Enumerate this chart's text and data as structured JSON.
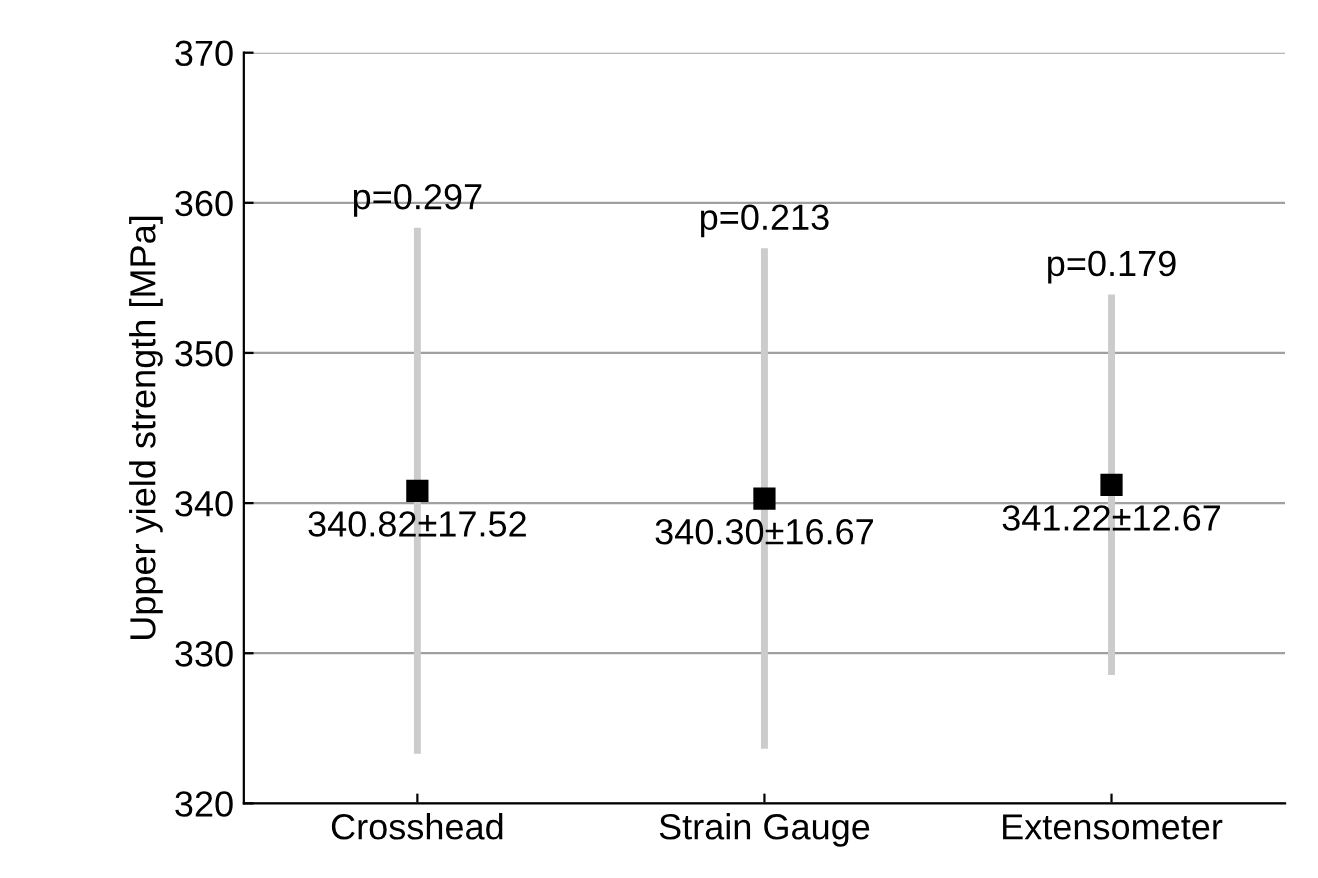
{
  "chart_data": {
    "type": "scatter",
    "ylabel": "Upper yield strength [MPa]",
    "categories": [
      "Crosshead",
      "Strain Gauge",
      "Extensometer"
    ],
    "series": [
      {
        "color": "#000000",
        "values": [
          340.82,
          340.3,
          341.22
        ],
        "errors": [
          17.52,
          16.67,
          12.67
        ]
      }
    ],
    "ylim": [
      320,
      370
    ],
    "yticks": [
      320,
      330,
      340,
      350,
      360,
      370
    ],
    "grid": "y",
    "marker": "square",
    "annotations": [
      {
        "text": "p=0.297",
        "x": "Crosshead",
        "y": 358.34
      },
      {
        "text": "p=0.213",
        "x": "Strain Gauge",
        "y": 356.97
      },
      {
        "text": "p=0.179",
        "x": "Extensometer",
        "y": 353.89
      },
      {
        "text": "340.82±17.52",
        "x": "Crosshead",
        "y": 340.82
      },
      {
        "text": "340.30±16.67",
        "x": "Strain Gauge",
        "y": 340.3
      },
      {
        "text": "341.22±12.67",
        "x": "Extensometer",
        "y": 341.22
      }
    ]
  }
}
